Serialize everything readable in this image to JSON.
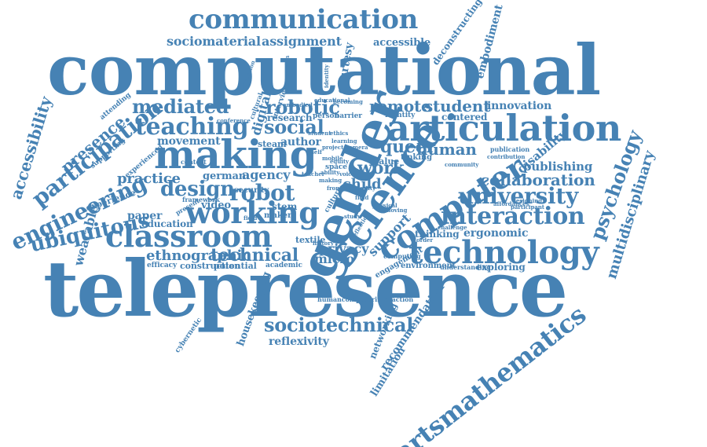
{
  "cloud": {
    "color": "#4682b4",
    "background": "#ffffff",
    "words": [
      "computational",
      "telepresence",
      "gender",
      "articulation",
      "communication",
      "sociomaterial",
      "assignment",
      "accessible",
      "courtesy",
      "deconstructing",
      "embodiment",
      "mediated",
      "robotic",
      "remote",
      "student",
      "innovation",
      "centered",
      "identity",
      "teaching",
      "social",
      "making",
      "movement",
      "author",
      "steam",
      "research",
      "person",
      "barrier",
      "digital",
      "cultural",
      "interview",
      "science",
      "computer",
      "queer",
      "human",
      "work",
      "tinking",
      "value",
      "child",
      "disability",
      "publishing",
      "collaboration",
      "university",
      "interaction",
      "psychology",
      "multidisciplinary",
      "ergonomic",
      "thinking",
      "technology",
      "classroom",
      "robot",
      "agency",
      "german",
      "design",
      "practice",
      "working",
      "video",
      "security",
      "education",
      "paper",
      "stem",
      "maker",
      "support",
      "textile",
      "micro",
      "privacy",
      "technical",
      "ethnographic",
      "efficacy",
      "construction",
      "potential",
      "academic",
      "engagement",
      "environment",
      "understanding",
      "exploring",
      "computing",
      "sociotechnical",
      "reflexivity",
      "housekeeping",
      "cybernetic",
      "networking",
      "recommendation",
      "limitation",
      "humancomputerinteraction",
      "artsmathematics",
      "accessibility",
      "participation",
      "engineering",
      "ubiquitous",
      "wearable",
      "presence",
      "experience",
      "supporting",
      "experienced",
      "attending",
      "context",
      "present",
      "framework",
      "conference",
      "education",
      "embodied",
      "expression",
      "identity",
      "educational",
      "becoming",
      "publication",
      "contribution",
      "designing",
      "participant",
      "affordances",
      "challenge",
      "order",
      "space",
      "self",
      "history",
      "camera",
      "equity",
      "physical",
      "moving",
      "study",
      "culture",
      "field",
      "frontier",
      "ability",
      "reflection",
      "community",
      "field",
      "voice",
      "mobile",
      "teacher",
      "student",
      "ethics",
      "learning",
      "project",
      "equity",
      "making"
    ]
  }
}
